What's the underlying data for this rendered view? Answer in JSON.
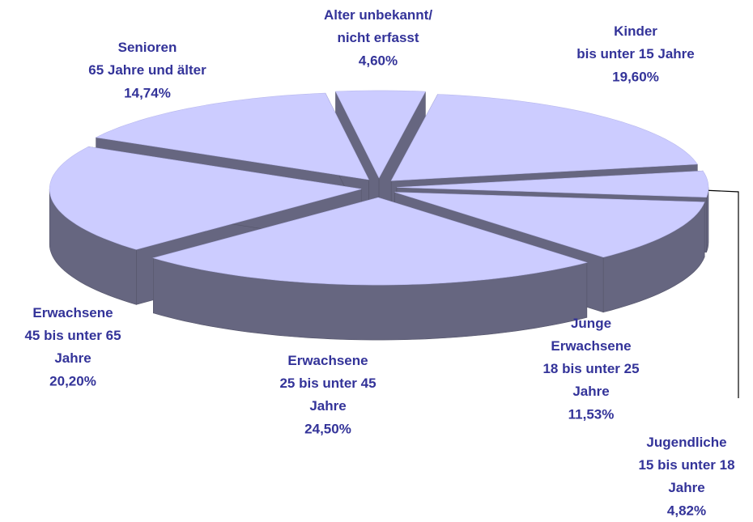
{
  "chart_data": {
    "type": "pie3d",
    "categories": [
      "Alter unbekannt/\nnicht erfasst",
      "Kinder\nbis unter 15 Jahre",
      "Jugendliche\n15 bis unter 18\nJahre",
      "Junge\nErwachsene\n18 bis unter 25\nJahre",
      "Erwachsene\n25 bis unter 45\nJahre",
      "Erwachsene\n45 bis unter 65\nJahre",
      "Senioren\n65 Jahre und älter"
    ],
    "values": [
      4.6,
      19.6,
      4.82,
      11.53,
      24.5,
      20.2,
      14.74
    ],
    "value_labels": [
      "4,60%",
      "19,60%",
      "4,82%",
      "11,53%",
      "24,50%",
      "20,20%",
      "14,74%"
    ],
    "top_color": "#ccccff",
    "side_color": "#666680"
  }
}
